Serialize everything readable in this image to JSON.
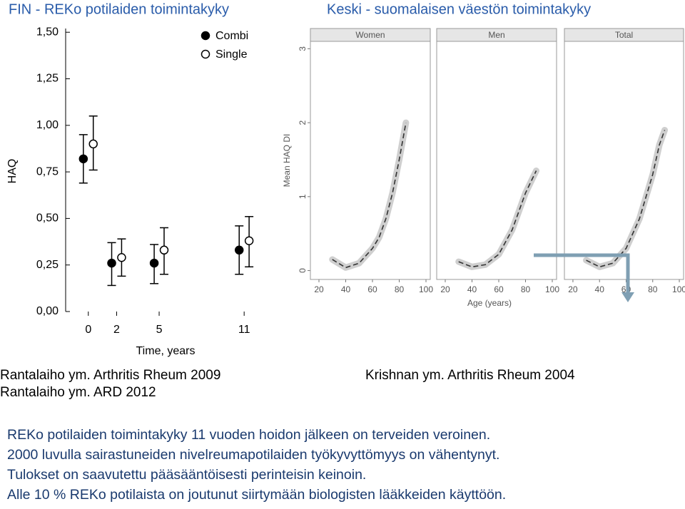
{
  "headers": {
    "left": "FIN - REKo potilaiden toimintakyky",
    "right": "Keski - suomalaisen väestön toimintakyky"
  },
  "chart_data": [
    {
      "type": "scatter",
      "ylabel": "HAQ",
      "xlabel": "Time, years",
      "legend": "upper right",
      "xlim": [
        -1.6,
        12.15
      ],
      "ylim": [
        0,
        1.52
      ],
      "xticks": [
        0,
        2,
        5,
        11
      ],
      "yticks": [
        {
          "value": 0,
          "label": "0,00"
        },
        {
          "value": 0.25,
          "label": "0,25"
        },
        {
          "value": 0.5,
          "label": "0,50"
        },
        {
          "value": 0.75,
          "label": "0,75"
        },
        {
          "value": 1,
          "label": "1,00"
        },
        {
          "value": 1.25,
          "label": "1,25"
        },
        {
          "value": 1.5,
          "label": "1,50"
        }
      ],
      "series": [
        {
          "name": "Combi",
          "color": "#000000",
          "marker": "filled",
          "x": [
            0,
            2,
            5,
            11
          ],
          "values": [
            0.82,
            0.26,
            0.26,
            0.33
          ],
          "low": [
            0.69,
            0.14,
            0.15,
            0.2
          ],
          "high": [
            0.95,
            0.37,
            0.36,
            0.46
          ]
        },
        {
          "name": "Single",
          "color": "#000000",
          "marker": "open",
          "x": [
            0,
            2,
            5,
            11
          ],
          "values": [
            0.9,
            0.29,
            0.33,
            0.38
          ],
          "low": [
            0.76,
            0.19,
            0.2,
            0.24
          ],
          "high": [
            1.05,
            0.39,
            0.45,
            0.51
          ]
        }
      ]
    },
    {
      "type": "line",
      "ylabel": "Mean HAQ DI",
      "xlabel": "Age (years)",
      "color": "#333333",
      "dashed": true,
      "xlim": [
        13.6,
        103.2
      ],
      "ylim": [
        -0.12,
        3.1
      ],
      "xticks": [
        20,
        40,
        60,
        80,
        100
      ],
      "yticks": [
        0,
        1,
        2,
        3
      ],
      "panels": [
        {
          "title": "Women",
          "x": [
            30,
            40,
            50,
            60,
            65,
            70,
            75,
            80,
            85
          ],
          "values": [
            0.15,
            0.04,
            0.1,
            0.3,
            0.45,
            0.7,
            1.05,
            1.5,
            2.0
          ]
        },
        {
          "title": "Men",
          "x": [
            30,
            40,
            50,
            60,
            70,
            80,
            88
          ],
          "values": [
            0.12,
            0.05,
            0.08,
            0.22,
            0.55,
            1.05,
            1.35
          ]
        },
        {
          "title": "Total",
          "x": [
            30,
            40,
            50,
            60,
            70,
            80,
            85,
            89
          ],
          "values": [
            0.14,
            0.05,
            0.1,
            0.3,
            0.7,
            1.3,
            1.7,
            1.9
          ]
        }
      ]
    }
  ],
  "citations": {
    "left": [
      "Rantalaiho ym. Arthritis Rheum 2009",
      "Rantalaiho ym. ARD 2012"
    ],
    "right": "Krishnan ym. Arthritis Rheum 2004"
  },
  "conclusions": [
    "REKo potilaiden toimintakyky 11 vuoden hoidon jälkeen on terveiden veroinen.",
    "2000 luvulla sairastuneiden nivelreumapotilaiden työkyvyttömyys on vähentynyt.",
    "Tulokset on saavutettu pääsääntöisesti perinteisin keinoin.",
    "Alle 10 % REKo potilaista on joutunut siirtymään biologisten lääkkeiden käyttöön."
  ]
}
